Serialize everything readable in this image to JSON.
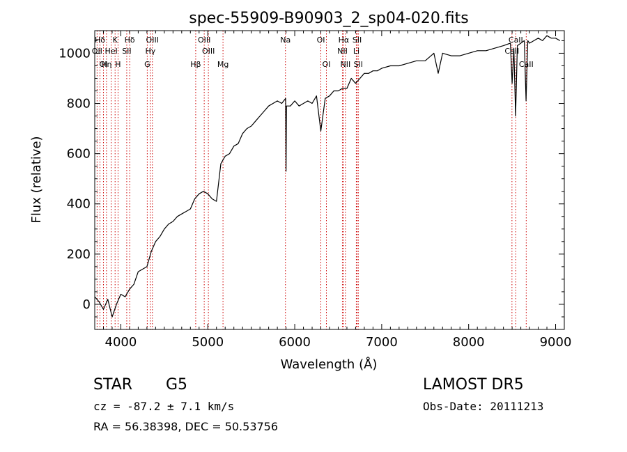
{
  "chart_data": {
    "type": "line",
    "title": "spec-55909-B90903_2_sp04-020.fits",
    "xlabel": "Wavelength (Å)",
    "ylabel": "Flux (relative)",
    "xlim": [
      3700,
      9100
    ],
    "ylim": [
      -100,
      1090
    ],
    "xticks": [
      4000,
      5000,
      6000,
      7000,
      8000,
      9000
    ],
    "yticks": [
      0,
      200,
      400,
      600,
      800,
      1000
    ],
    "grid": false,
    "series": [
      {
        "color": "#000000",
        "x": [
          3700,
          3750,
          3800,
          3850,
          3900,
          3950,
          4000,
          4050,
          4100,
          4150,
          4200,
          4250,
          4300,
          4350,
          4400,
          4450,
          4500,
          4550,
          4600,
          4650,
          4700,
          4750,
          4800,
          4850,
          4900,
          4950,
          5000,
          5050,
          5100,
          5150,
          5200,
          5250,
          5300,
          5350,
          5400,
          5450,
          5500,
          5550,
          5600,
          5650,
          5700,
          5750,
          5800,
          5850,
          5895,
          5900,
          5905,
          5950,
          6000,
          6050,
          6100,
          6150,
          6200,
          6250,
          6300,
          6350,
          6400,
          6450,
          6500,
          6550,
          6600,
          6650,
          6700,
          6750,
          6800,
          6850,
          6900,
          6950,
          7000,
          7100,
          7200,
          7300,
          7400,
          7500,
          7600,
          7650,
          7700,
          7800,
          7900,
          8000,
          8100,
          8200,
          8300,
          8400,
          8480,
          8500,
          8520,
          8540,
          8560,
          8600,
          8640,
          8660,
          8680,
          8700,
          8750,
          8800,
          8850,
          8900,
          8950,
          9000,
          9050
        ],
        "y": [
          30,
          10,
          -20,
          20,
          -50,
          0,
          40,
          30,
          60,
          80,
          130,
          140,
          150,
          210,
          250,
          270,
          300,
          320,
          330,
          350,
          360,
          370,
          380,
          420,
          440,
          450,
          440,
          420,
          410,
          560,
          590,
          600,
          630,
          640,
          680,
          700,
          710,
          730,
          750,
          770,
          790,
          800,
          810,
          800,
          820,
          530,
          790,
          790,
          810,
          790,
          800,
          810,
          800,
          830,
          690,
          820,
          830,
          850,
          850,
          860,
          860,
          900,
          880,
          900,
          920,
          920,
          930,
          930,
          940,
          950,
          950,
          960,
          970,
          970,
          1000,
          920,
          1000,
          990,
          990,
          1000,
          1010,
          1010,
          1020,
          1030,
          1040,
          880,
          1020,
          750,
          1030,
          1040,
          1050,
          810,
          1050,
          1040,
          1050,
          1060,
          1050,
          1070,
          1060,
          1060,
          1050
        ]
      }
    ],
    "line_marks": [
      {
        "label": "Hδ",
        "x": 3760
      },
      {
        "label": "K",
        "x": 3934
      },
      {
        "label": "Hδ",
        "x": 4102
      },
      {
        "label": "OIII",
        "x": 4363
      },
      {
        "label": "OIII",
        "x": 4959
      },
      {
        "label": "Na",
        "x": 5893
      },
      {
        "label": "OI",
        "x": 6300
      },
      {
        "label": "Hα",
        "x": 6563
      },
      {
        "label": "SII",
        "x": 6717
      },
      {
        "label": "CaII",
        "x": 8542
      },
      {
        "label": "OII",
        "x": 3727
      },
      {
        "label": "HeI",
        "x": 3889
      },
      {
        "label": "SII",
        "x": 4068
      },
      {
        "label": "Hγ",
        "x": 4340
      },
      {
        "label": "OIII",
        "x": 5007
      },
      {
        "label": "NII",
        "x": 6548
      },
      {
        "label": "Li",
        "x": 6708
      },
      {
        "label": "CaII",
        "x": 8498
      },
      {
        "label": "OI",
        "x": 3800
      },
      {
        "label": "Hη",
        "x": 3835
      },
      {
        "label": "H",
        "x": 3968
      },
      {
        "label": "G",
        "x": 4304
      },
      {
        "label": "Hβ",
        "x": 4861
      },
      {
        "label": "Mg",
        "x": 5175
      },
      {
        "label": "OI",
        "x": 6364
      },
      {
        "label": "NII",
        "x": 6583
      },
      {
        "label": "SII",
        "x": 6731
      },
      {
        "label": "CaII",
        "x": 8662
      }
    ]
  },
  "info": {
    "star_label": "STAR",
    "spectral_type": "G5",
    "survey": "LAMOST DR5",
    "cz_line": "cz = -87.2 ± 7.1 km/s",
    "obs_date": "Obs-Date: 20111213",
    "coords": "RA =  56.38398, DEC =  50.53756"
  }
}
